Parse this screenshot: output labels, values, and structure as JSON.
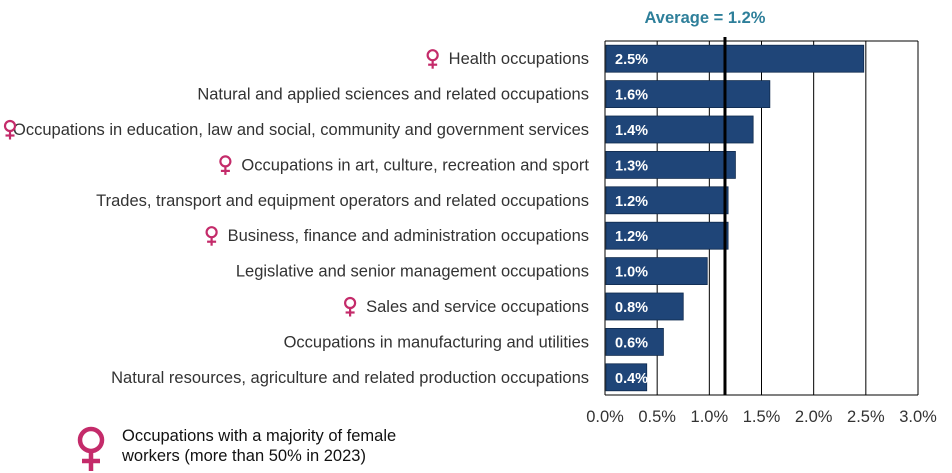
{
  "chart_data": {
    "type": "bar",
    "orientation": "horizontal",
    "categories": [
      "Health occupations",
      "Natural and applied sciences and related occupations",
      "Occupations in education, law and social, community and government services",
      "Occupations in art, culture, recreation and sport",
      "Trades, transport and equipment operators and related occupations",
      "Business, finance and administration occupations",
      "Legislative and senior management occupations",
      "Sales and service occupations",
      "Occupations in manufacturing and utilities",
      "Natural resources, agriculture and related production occupations"
    ],
    "values": [
      2.48,
      1.58,
      1.42,
      1.25,
      1.18,
      1.18,
      0.98,
      0.75,
      0.56,
      0.4
    ],
    "data_labels": [
      "2.5%",
      "1.6%",
      "1.4%",
      "1.3%",
      "1.2%",
      "1.2%",
      "1.0%",
      "0.8%",
      "0.6%",
      "0.4%"
    ],
    "female_majority": [
      true,
      false,
      true,
      true,
      false,
      true,
      false,
      true,
      false,
      false
    ],
    "xlim": [
      0,
      3.0
    ],
    "xticks": [
      0,
      0.5,
      1.0,
      1.5,
      2.0,
      2.5,
      3.0
    ],
    "xtick_labels": [
      "0.0%",
      "0.5%",
      "1.0%",
      "1.5%",
      "2.0%",
      "2.5%",
      "3.0%"
    ],
    "average": {
      "value": 1.15,
      "label": "Average = 1.2%"
    },
    "grid": true,
    "colors": {
      "bar": "#1f4578",
      "female_symbol": "#c42b6a",
      "average_label": "#2e7f9a",
      "average_line": "#000000",
      "grid": "#000000"
    },
    "legend": {
      "icon": "female-symbol-icon",
      "text_line1": "Occupations with a majority of female",
      "text_line2": "workers (more than 50% in 2023)"
    }
  }
}
